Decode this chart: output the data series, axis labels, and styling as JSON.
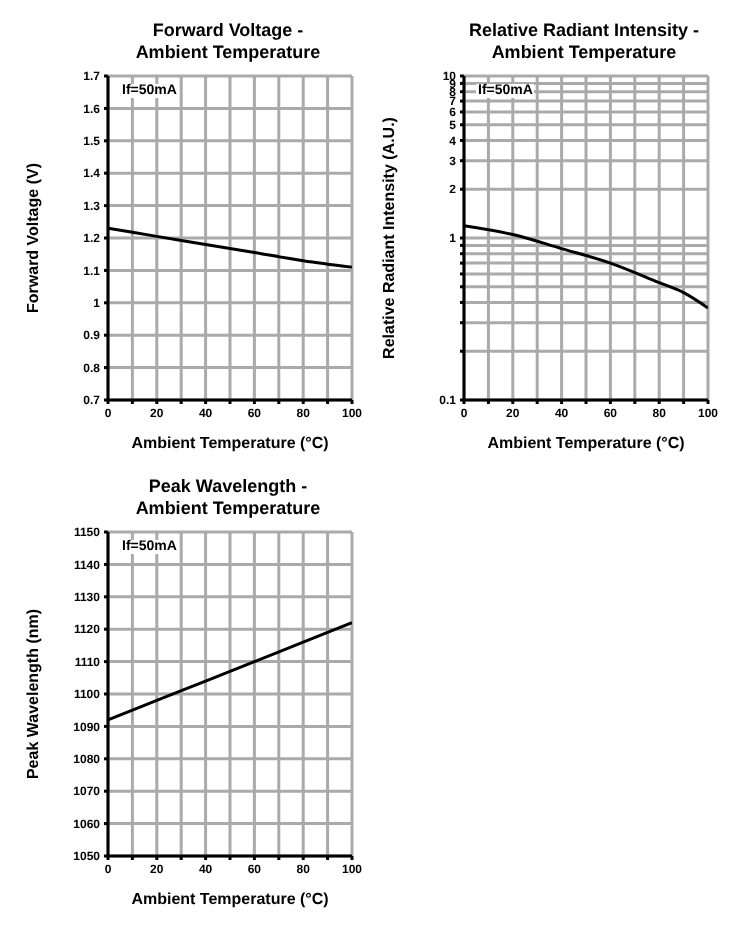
{
  "chart_data": [
    {
      "type": "line",
      "title": "Forward Voltage -\nAmbient Temperature",
      "xlabel": "Ambient Temperature (°C)",
      "ylabel": "Forward Voltage (V)",
      "annotations": [
        "If=50mA"
      ],
      "grid": true,
      "x": [
        0,
        20,
        40,
        60,
        80,
        100
      ],
      "series": [
        {
          "color": "#000000",
          "values": [
            1.23,
            1.205,
            1.18,
            1.155,
            1.13,
            1.11
          ]
        }
      ],
      "xlim": [
        0,
        100
      ],
      "xticks": [
        0,
        {
          "value": 10,
          "label": null
        },
        20,
        {
          "value": 30,
          "label": null
        },
        40,
        {
          "value": 50,
          "label": null
        },
        60,
        {
          "value": 70,
          "label": null
        },
        80,
        {
          "value": 90,
          "label": null
        },
        100
      ],
      "ylim": [
        0.7,
        1.7
      ],
      "yticks": [
        0.7,
        0.8,
        0.9,
        1.0,
        1.1,
        1.2,
        1.3,
        1.4,
        1.5,
        1.6,
        1.7
      ]
    },
    {
      "type": "line",
      "title": "Relative Radiant Intensity -\nAmbient Temperature",
      "xlabel": "Ambient Temperature (°C)",
      "ylabel": "Relative Radiant Intensity (A.U.)",
      "annotations": [
        "If=50mA"
      ],
      "grid": true,
      "log": "y",
      "x": [
        0,
        20,
        40,
        60,
        80,
        90,
        100
      ],
      "series": [
        {
          "color": "#000000",
          "values": [
            1.19,
            1.05,
            0.86,
            0.7,
            0.53,
            0.46,
            0.37
          ]
        }
      ],
      "xlim": [
        0,
        100
      ],
      "xticks": [
        0,
        {
          "value": 10,
          "label": null
        },
        20,
        {
          "value": 30,
          "label": null
        },
        40,
        {
          "value": 50,
          "label": null
        },
        60,
        {
          "value": 70,
          "label": null
        },
        80,
        {
          "value": 90,
          "label": null
        },
        100
      ],
      "ylim": [
        0.1,
        10
      ],
      "yticks": [
        0.1,
        {
          "value": 0.2,
          "label": null
        },
        {
          "value": 0.3,
          "label": null
        },
        {
          "value": 0.4,
          "label": null
        },
        {
          "value": 0.5,
          "label": null
        },
        {
          "value": 0.6,
          "label": null
        },
        {
          "value": 0.7,
          "label": null
        },
        {
          "value": 0.8,
          "label": null
        },
        {
          "value": 0.9,
          "label": null
        },
        1,
        2,
        3,
        4,
        5,
        6,
        7,
        8,
        9,
        10
      ]
    },
    {
      "type": "line",
      "title": "Peak Wavelength -\nAmbient Temperature",
      "xlabel": "Ambient Temperature (°C)",
      "ylabel": "Peak Wavelength (nm)",
      "annotations": [
        "If=50mA"
      ],
      "grid": true,
      "x": [
        0,
        20,
        40,
        60,
        80,
        100
      ],
      "series": [
        {
          "color": "#000000",
          "values": [
            1092,
            1098,
            1104,
            1110,
            1116,
            1122
          ]
        }
      ],
      "xlim": [
        0,
        100
      ],
      "xticks": [
        0,
        {
          "value": 10,
          "label": null
        },
        20,
        {
          "value": 30,
          "label": null
        },
        40,
        {
          "value": 50,
          "label": null
        },
        60,
        {
          "value": 70,
          "label": null
        },
        80,
        {
          "value": 90,
          "label": null
        },
        100
      ],
      "ylim": [
        1050,
        1150
      ],
      "yticks": [
        1050,
        1060,
        1070,
        1080,
        1090,
        1100,
        1110,
        1120,
        1130,
        1140,
        1150
      ]
    }
  ]
}
